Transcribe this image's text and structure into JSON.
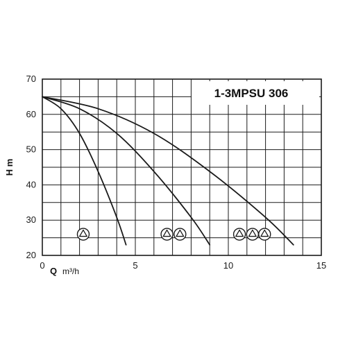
{
  "chart_data": {
    "type": "line",
    "title": "1-3MPSU 306",
    "xlabel": "Q",
    "xunit": "m³/h",
    "ylabel": "H m",
    "xlim": [
      0,
      15
    ],
    "ylim": [
      20,
      70
    ],
    "xticks": [
      0,
      5,
      10,
      15
    ],
    "yticks": [
      20,
      30,
      40,
      50,
      60,
      70
    ],
    "grid": true,
    "series": [
      {
        "pumps": 1,
        "x": [
          0,
          1,
          2,
          3,
          4,
          4.5
        ],
        "y": [
          65,
          61.6,
          54.6,
          43.8,
          30.8,
          23
        ]
      },
      {
        "pumps": 2,
        "x": [
          0,
          2,
          4,
          6,
          8,
          9
        ],
        "y": [
          65,
          61.6,
          54.6,
          43.8,
          30.8,
          23
        ]
      },
      {
        "pumps": 3,
        "x": [
          0,
          3,
          6,
          9,
          12,
          13.5
        ],
        "y": [
          65,
          61.6,
          54.6,
          43.8,
          30.8,
          23
        ]
      }
    ],
    "pump_markers": [
      {
        "count": 1,
        "x": [
          2.2
        ],
        "y": 26
      },
      {
        "count": 2,
        "x": [
          6.7,
          7.4
        ],
        "y": 26
      },
      {
        "count": 3,
        "x": [
          10.6,
          11.3,
          11.95
        ],
        "y": 26
      }
    ]
  }
}
